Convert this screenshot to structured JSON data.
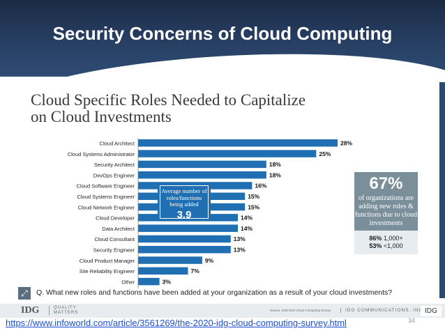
{
  "slide_title": "Security Concerns of Cloud Computing",
  "chart_title_line1": "Cloud Specific Roles Needed to Capitalize",
  "chart_title_line2": "on Cloud Investments",
  "chart_data": {
    "type": "bar",
    "orientation": "horizontal",
    "categories": [
      "Cloud Architect",
      "Cloud Systems Administrator",
      "Security Architect",
      "DevOps Engineer",
      "Cloud Software Engineer",
      "Cloud Systems Engineer",
      "Cloud Network Engineer",
      "Cloud Developer",
      "Data Architect",
      "Cloud Consultant",
      "Security Engineer",
      "Cloud Product Manager",
      "Site Reliability Engineer",
      "Other"
    ],
    "values": [
      28,
      25,
      18,
      18,
      16,
      15,
      15,
      14,
      14,
      13,
      13,
      9,
      7,
      3
    ],
    "value_suffix": "%",
    "bar_color": "#1f6fb2",
    "xlim": [
      0,
      28
    ]
  },
  "callout": {
    "label": "Average number of roles/functions being added",
    "value": "3.9"
  },
  "stat_box": {
    "percent": "67%",
    "text": "of organizations are adding new roles & functions due to cloud investments",
    "line1_bold": "86%",
    "line1_rest": "1,000+",
    "line2_bold": "53%",
    "line2_rest": "<1,000"
  },
  "question": "Q. What new roles and functions have been added at your organization as a result of your cloud investments?",
  "footer": {
    "logo": "IDG",
    "quality": "QUALITY",
    "matters": "MATTERS",
    "source": "Source: 2020 IDG Cloud Computing Survey",
    "company": "IDG COMMUNICATIONS, INC.",
    "badge": "IDG"
  },
  "link_text": "https://www.infoworld.com/article/3561269/the-2020-idg-cloud-computing-survey.html",
  "page_number": "34",
  "colors": {
    "header_bg": "#243a5c",
    "bar": "#1f6fb2",
    "stat_bg": "#7a8f9a",
    "link": "#1a4fd6"
  }
}
